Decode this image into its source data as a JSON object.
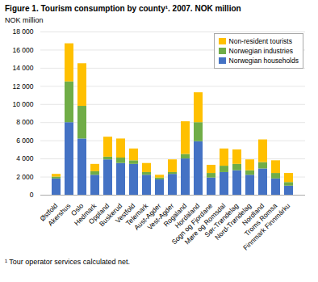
{
  "chart_data": {
    "type": "bar",
    "stacked": true,
    "title": "Figure 1. Tourism consumption by county¹. 2007. NOK million",
    "ylabel": "NOK million",
    "footnote": "¹ Tour operator services calculated net.",
    "categories": [
      "Østfold",
      "Akershus",
      "Oslo",
      "Hedmark",
      "Oppland",
      "Buskerud",
      "Vestfold",
      "Telemark",
      "Aust-Agder",
      "Vest-Agder",
      "Rogaland",
      "Hordaland",
      "Sogn og Fjordane",
      "Møre og Romsdal",
      "Sør-Trøndelag",
      "Nord-Trøndelag",
      "Nordland",
      "Troms Romsa",
      "Finnmark Finnmárku"
    ],
    "series": [
      {
        "name": "Norwegian households",
        "color": "#4472c4",
        "values": [
          1800,
          8000,
          6200,
          2200,
          3900,
          3500,
          3400,
          2200,
          1700,
          2300,
          4000,
          5900,
          1900,
          2500,
          2700,
          2200,
          2900,
          1800,
          1000
        ]
      },
      {
        "name": "Norwegian industries",
        "color": "#70ad47",
        "values": [
          200,
          4500,
          3600,
          400,
          300,
          600,
          400,
          300,
          200,
          200,
          500,
          2100,
          500,
          700,
          700,
          500,
          700,
          600,
          400
        ]
      },
      {
        "name": "Non-resident tourists",
        "color": "#ffc000",
        "values": [
          300,
          4200,
          4700,
          800,
          2200,
          2100,
          1300,
          1000,
          300,
          1400,
          3600,
          3300,
          900,
          1900,
          1600,
          1200,
          2500,
          1400,
          1000
        ]
      }
    ],
    "ylim": [
      0,
      18000
    ],
    "yticks": [
      0,
      {
        "value": 2000,
        "label": "2 000"
      },
      {
        "value": 4000,
        "label": "4 000"
      },
      {
        "value": 6000,
        "label": "6 000"
      },
      {
        "value": 8000,
        "label": "8 000"
      },
      {
        "value": 10000,
        "label": "10 000"
      },
      {
        "value": 12000,
        "label": "12 000"
      },
      {
        "value": 14000,
        "label": "14 000"
      },
      {
        "value": 16000,
        "label": "16 000"
      },
      {
        "value": 18000,
        "label": "18 000"
      }
    ],
    "grid": true,
    "legend": "upper right"
  }
}
